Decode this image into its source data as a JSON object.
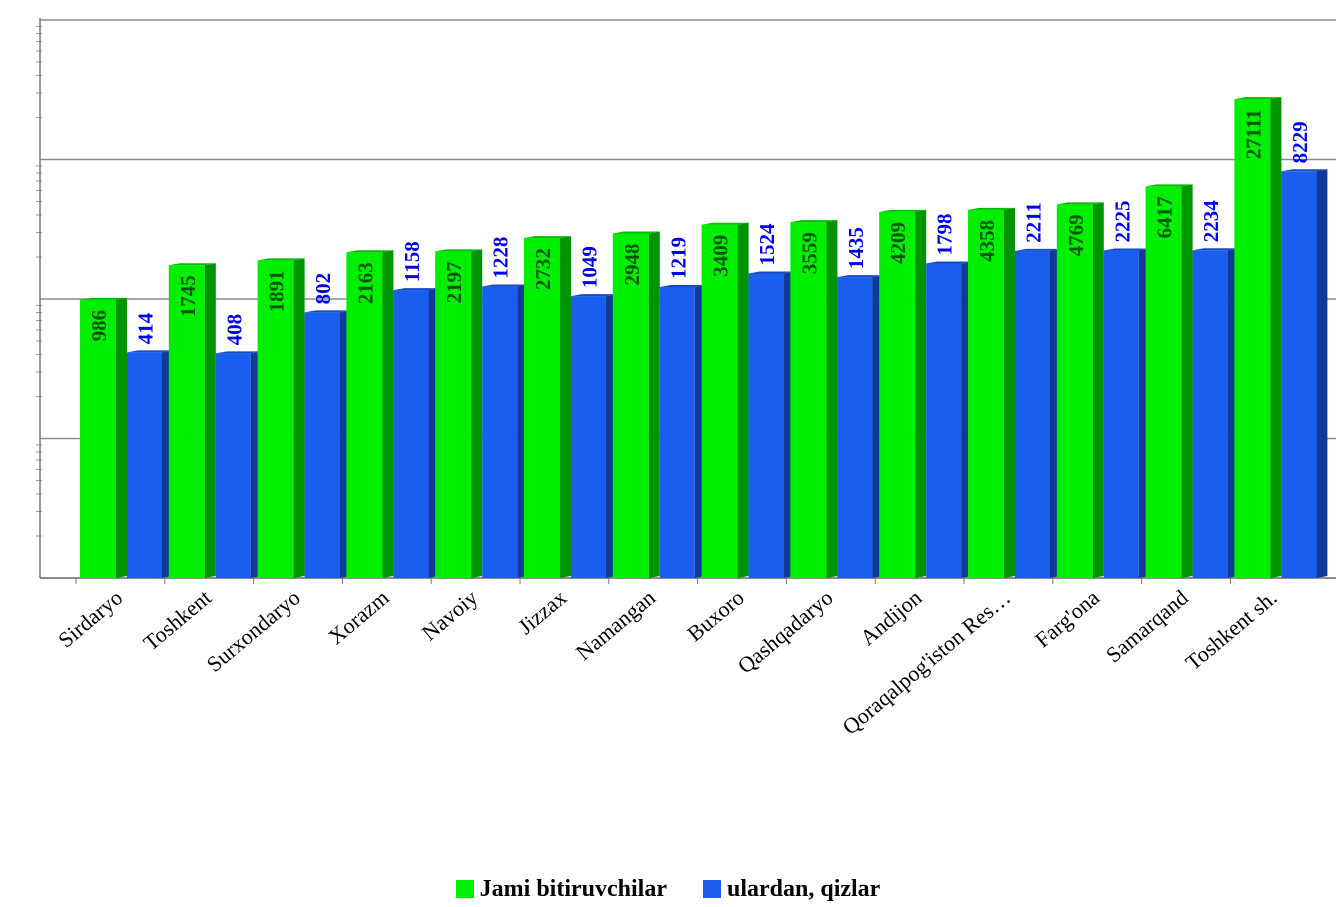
{
  "chart_data": {
    "type": "bar",
    "categories": [
      "Sirdaryo",
      "Toshkent",
      "Surxondaryo",
      "Xorazm",
      "Navoiy",
      "Jizzax",
      "Namangan",
      "Buxoro",
      "Qashqadaryo",
      "Andijon",
      "Qoraqalpog'iston Res…",
      "Farg'ona",
      "Samarqand",
      "Toshkent sh."
    ],
    "series": [
      {
        "name": "Jami bitiruvchilar",
        "color": "#00ee00",
        "values": [
          986,
          1745,
          1891,
          2163,
          2197,
          2732,
          2948,
          3409,
          3559,
          4209,
          4358,
          4769,
          6417,
          27111
        ]
      },
      {
        "name": "ulardan, qizlar",
        "color": "#1a5ef0",
        "values": [
          414,
          408,
          802,
          1158,
          1228,
          1049,
          1219,
          1524,
          1435,
          1798,
          2211,
          2225,
          2234,
          8229
        ]
      }
    ],
    "value_label_colors": [
      "#005500",
      "#0000ee"
    ],
    "y_scale": "log",
    "ylim": [
      10,
      100000
    ],
    "grid": true,
    "legend_position": "bottom"
  }
}
